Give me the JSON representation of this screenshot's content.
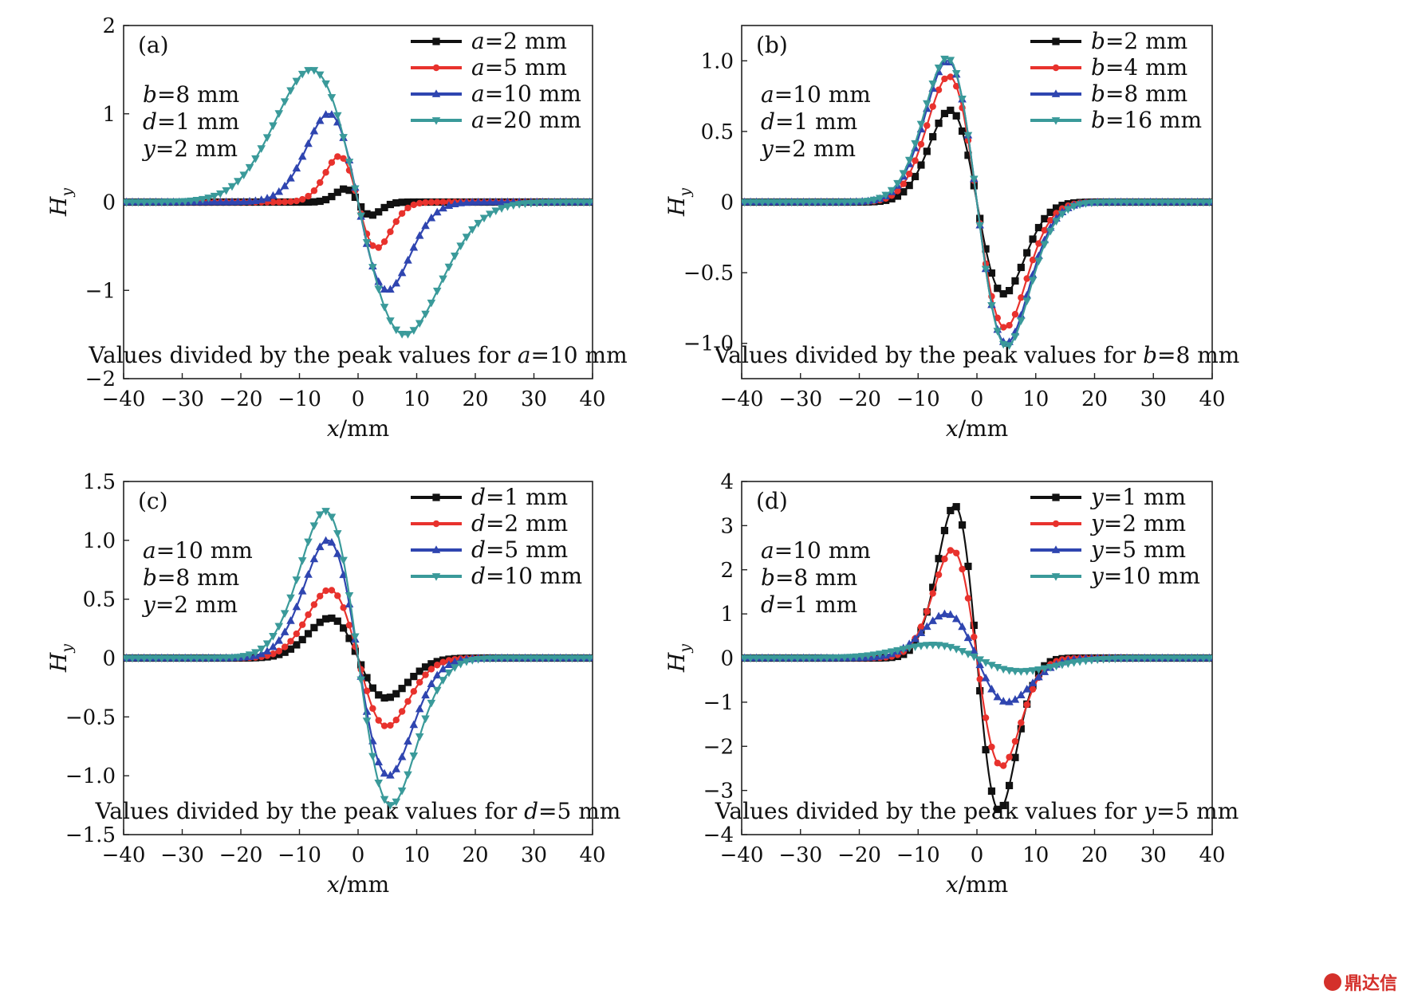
{
  "watermark": {
    "text": "鼎达信",
    "icon": "logo-circle-icon"
  },
  "chart_data": [
    {
      "type": "line",
      "panel": "(a)",
      "xlabel": "x/mm",
      "ylabel": "Hy",
      "xlim": [
        -40,
        40
      ],
      "ylim": [
        -2,
        2
      ],
      "xticks": [
        -40,
        -30,
        -20,
        -10,
        0,
        10,
        20,
        30,
        40
      ],
      "yticks": [
        2,
        1,
        0,
        -1,
        -2
      ],
      "ytick_labels": [
        "2",
        "1",
        "0",
        "−1",
        "−2"
      ],
      "xtick_labels": [
        "−40",
        "−30",
        "−20",
        "−10",
        "0",
        "10",
        "20",
        "30",
        "40"
      ],
      "annotation": [
        "b=8 mm",
        "d=1 mm",
        "y=2 mm"
      ],
      "note": "Values divided by the peak values for a=10 mm",
      "legend_position": "top-right",
      "series": [
        {
          "name": "a=2 mm",
          "color": "#111111",
          "marker": "square",
          "amp": 0.15,
          "width": 2.2
        },
        {
          "name": "a=5 mm",
          "color": "#e8322d",
          "marker": "circle",
          "amp": 0.52,
          "width": 3.2
        },
        {
          "name": "a=10 mm",
          "color": "#2f45b0",
          "marker": "triangle-up",
          "amp": 1.0,
          "width": 5.0
        },
        {
          "name": "a=20 mm",
          "color": "#3a9a9a",
          "marker": "triangle-down",
          "amp": 1.5,
          "width": 8.0
        }
      ]
    },
    {
      "type": "line",
      "panel": "(b)",
      "xlabel": "x/mm",
      "ylabel": "Hy",
      "xlim": [
        -40,
        40
      ],
      "ylim": [
        -1.25,
        1.25
      ],
      "xticks": [
        -40,
        -30,
        -20,
        -10,
        0,
        10,
        20,
        30,
        40
      ],
      "yticks": [
        1.0,
        0.5,
        0,
        -0.5,
        -1.0
      ],
      "ytick_labels": [
        "1.0",
        "0.5",
        "0",
        "−0.5",
        "−1.0"
      ],
      "xtick_labels": [
        "−40",
        "−30",
        "−20",
        "−10",
        "0",
        "10",
        "20",
        "30",
        "40"
      ],
      "annotation": [
        "a=10 mm",
        "d=1 mm",
        "y=2 mm"
      ],
      "note": "Values divided by the peak values for b=8 mm",
      "legend_position": "top-right",
      "series": [
        {
          "name": "b=2 mm",
          "color": "#111111",
          "marker": "square",
          "amp": 0.65,
          "width": 4.6
        },
        {
          "name": "b=4 mm",
          "color": "#e8322d",
          "marker": "circle",
          "amp": 0.89,
          "width": 4.8
        },
        {
          "name": "b=8 mm",
          "color": "#2f45b0",
          "marker": "triangle-up",
          "amp": 1.0,
          "width": 5.0
        },
        {
          "name": "b=16 mm",
          "color": "#3a9a9a",
          "marker": "triangle-down",
          "amp": 1.02,
          "width": 5.1
        }
      ]
    },
    {
      "type": "line",
      "panel": "(c)",
      "xlabel": "x/mm",
      "ylabel": "Hy",
      "xlim": [
        -40,
        40
      ],
      "ylim": [
        -1.5,
        1.5
      ],
      "xticks": [
        -40,
        -30,
        -20,
        -10,
        0,
        10,
        20,
        30,
        40
      ],
      "yticks": [
        1.5,
        1.0,
        0.5,
        0,
        -0.5,
        -1.0,
        -1.5
      ],
      "ytick_labels": [
        "1.5",
        "1.0",
        "0.5",
        "0",
        "−0.5",
        "−1.0",
        "−1.5"
      ],
      "xtick_labels": [
        "−40",
        "−30",
        "−20",
        "−10",
        "0",
        "10",
        "20",
        "30",
        "40"
      ],
      "annotation": [
        "a=10 mm",
        "b=8 mm",
        "y=2 mm"
      ],
      "note": "Values divided by the peak values for d=5 mm",
      "legend_position": "top-right",
      "series": [
        {
          "name": "d=1 mm",
          "color": "#111111",
          "marker": "square",
          "amp": 0.34,
          "width": 4.8
        },
        {
          "name": "d=2 mm",
          "color": "#e8322d",
          "marker": "circle",
          "amp": 0.58,
          "width": 4.9
        },
        {
          "name": "d=5 mm",
          "color": "#2f45b0",
          "marker": "triangle-up",
          "amp": 1.0,
          "width": 5.2
        },
        {
          "name": "d=10 mm",
          "color": "#3a9a9a",
          "marker": "triangle-down",
          "amp": 1.25,
          "width": 5.6
        }
      ]
    },
    {
      "type": "line",
      "panel": "(d)",
      "xlabel": "x/mm",
      "ylabel": "Hy",
      "xlim": [
        -40,
        40
      ],
      "ylim": [
        -4,
        4
      ],
      "xticks": [
        -40,
        -30,
        -20,
        -10,
        0,
        10,
        20,
        30,
        40
      ],
      "yticks": [
        4,
        3,
        2,
        1,
        0,
        -1,
        -2,
        -3,
        -4
      ],
      "ytick_labels": [
        "4",
        "3",
        "2",
        "1",
        "0",
        "−1",
        "−2",
        "−3",
        "−4"
      ],
      "xtick_labels": [
        "−40",
        "−30",
        "−20",
        "−10",
        "0",
        "10",
        "20",
        "30",
        "40"
      ],
      "annotation": [
        "a=10 mm",
        "b=8 mm",
        "d=1 mm"
      ],
      "note": "Values divided by the peak values for y=5 mm",
      "legend_position": "top-right",
      "series": [
        {
          "name": "y=1 mm",
          "color": "#111111",
          "marker": "square",
          "amp": 3.45,
          "width": 3.8
        },
        {
          "name": "y=2 mm",
          "color": "#e8322d",
          "marker": "circle",
          "amp": 2.45,
          "width": 4.2
        },
        {
          "name": "y=5 mm",
          "color": "#2f45b0",
          "marker": "triangle-up",
          "amp": 1.0,
          "width": 5.2
        },
        {
          "name": "y=10 mm",
          "color": "#3a9a9a",
          "marker": "triangle-down",
          "amp": 0.3,
          "width": 7.5
        }
      ]
    }
  ]
}
